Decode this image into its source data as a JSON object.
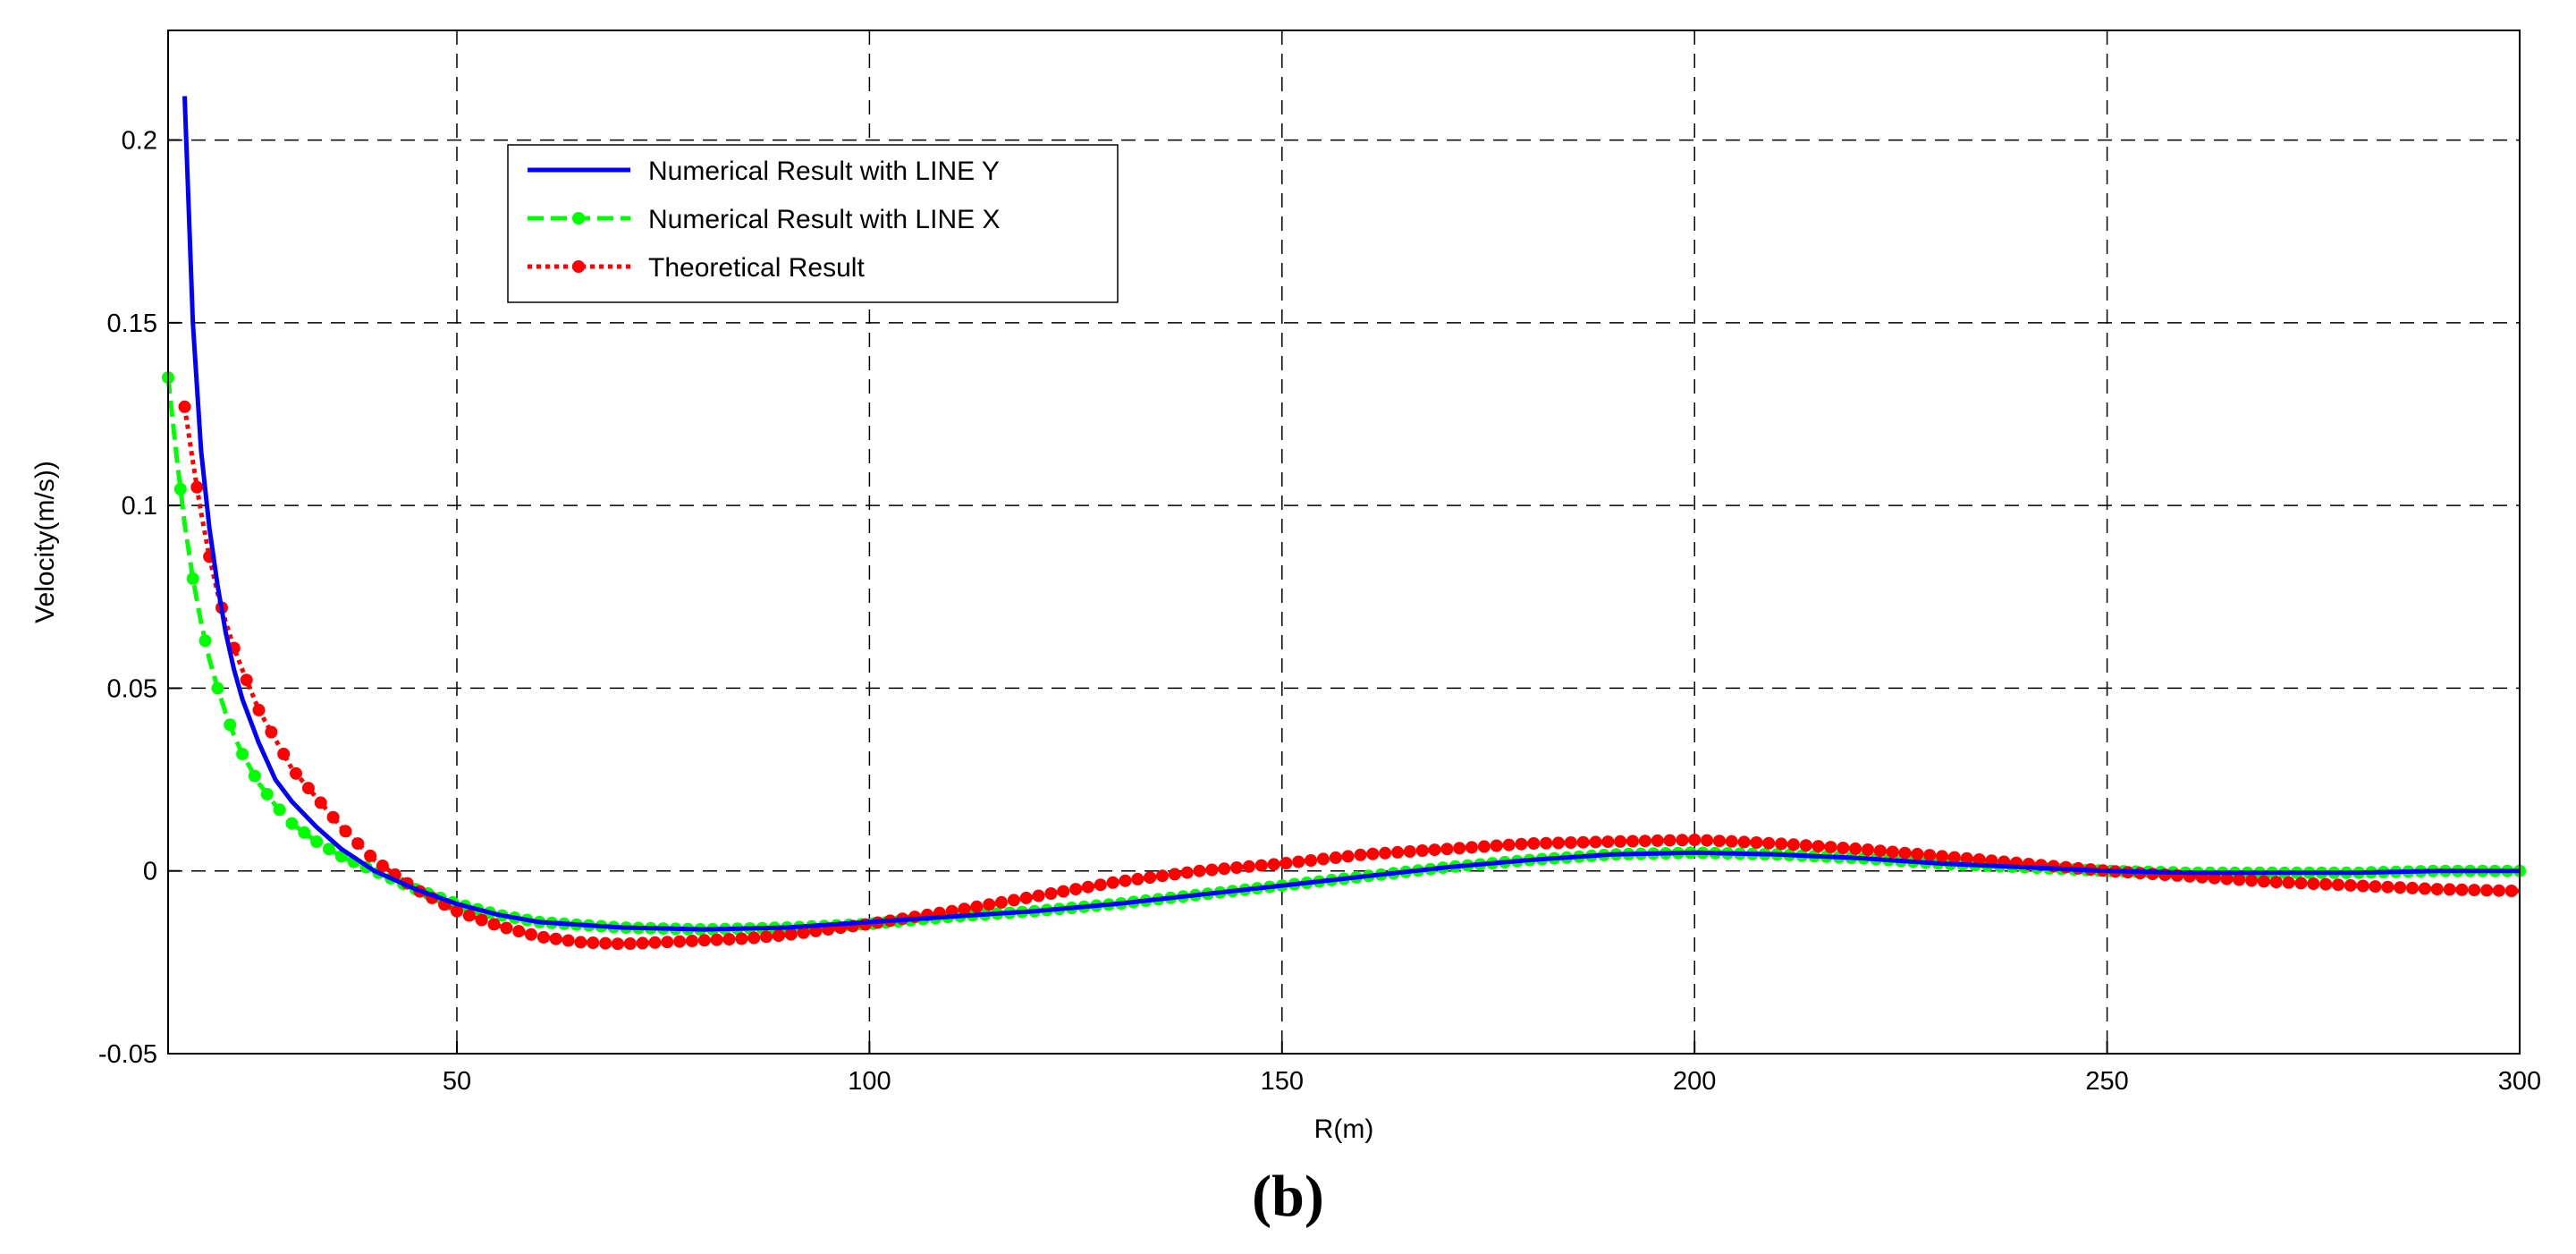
{
  "panel_label": "(b)",
  "colors": {
    "line_y": "#0000ff",
    "line_x": "#00ff00",
    "theoretical": "#ff0000",
    "grid": "#000000",
    "axes": "#000000"
  },
  "chart_data": {
    "type": "line",
    "title": "",
    "xlabel": "R(m)",
    "ylabel": "Velocity(m/s))",
    "xlim": [
      15,
      300
    ],
    "ylim": [
      -0.05,
      0.23
    ],
    "xticks": [
      50,
      100,
      150,
      200,
      250,
      300
    ],
    "xtick_labels": [
      "50",
      "100",
      "150",
      "200",
      "250",
      "300"
    ],
    "yticks": [
      -0.05,
      0,
      0.05,
      0.1,
      0.15,
      0.2
    ],
    "ytick_labels": [
      "-0.05",
      "0",
      "0.05",
      "0.1",
      "0.15",
      "0.2"
    ],
    "grid": true,
    "grid_style": "dashed",
    "legend_position": "upper-left",
    "series": [
      {
        "name": "Numerical Result with LINE Y",
        "color": "#0000ff",
        "style": "solid",
        "marker": "none",
        "x": [
          17,
          18,
          19,
          20,
          21,
          22,
          23,
          24,
          26,
          28,
          30,
          33,
          36,
          40,
          45,
          50,
          55,
          60,
          70,
          80,
          90,
          100,
          110,
          120,
          130,
          140,
          150,
          160,
          170,
          180,
          190,
          200,
          210,
          220,
          230,
          240,
          250,
          260,
          270,
          280,
          290,
          300
        ],
        "y": [
          0.212,
          0.15,
          0.115,
          0.094,
          0.078,
          0.065,
          0.055,
          0.047,
          0.035,
          0.025,
          0.019,
          0.012,
          0.006,
          0.0,
          -0.005,
          -0.009,
          -0.012,
          -0.014,
          -0.0155,
          -0.016,
          -0.0155,
          -0.014,
          -0.0125,
          -0.011,
          -0.009,
          -0.0065,
          -0.004,
          -0.0015,
          0.001,
          0.003,
          0.0045,
          0.005,
          0.0045,
          0.0035,
          0.002,
          0.001,
          0.0,
          -0.0005,
          -0.0005,
          -0.0005,
          0.0,
          0.0
        ]
      },
      {
        "name": "Numerical Result with LINE X",
        "color": "#00ff00",
        "style": "dashed",
        "marker": "circle",
        "x": [
          15,
          16,
          17,
          18,
          19,
          20,
          21,
          22,
          23,
          24,
          26,
          28,
          30,
          33,
          36,
          40,
          45,
          50,
          55,
          60,
          70,
          80,
          90,
          100,
          110,
          120,
          130,
          140,
          150,
          160,
          170,
          180,
          190,
          200,
          210,
          220,
          230,
          240,
          250,
          260,
          270,
          280,
          290,
          300
        ],
        "y": [
          0.135,
          0.114,
          0.095,
          0.08,
          0.068,
          0.058,
          0.05,
          0.043,
          0.037,
          0.032,
          0.024,
          0.018,
          0.013,
          0.008,
          0.004,
          0.0,
          -0.005,
          -0.009,
          -0.012,
          -0.014,
          -0.0155,
          -0.016,
          -0.0155,
          -0.0145,
          -0.0125,
          -0.011,
          -0.009,
          -0.0065,
          -0.004,
          -0.0015,
          0.001,
          0.003,
          0.0045,
          0.005,
          0.0045,
          0.0035,
          0.002,
          0.001,
          0.0,
          -0.0005,
          -0.0005,
          -0.0005,
          0.0,
          0.0
        ]
      },
      {
        "name": "Theoretical Result",
        "color": "#ff0000",
        "style": "dotted",
        "marker": "circle",
        "x": [
          17,
          18,
          19,
          20,
          21,
          22,
          23,
          24,
          26,
          28,
          30,
          33,
          36,
          40,
          45,
          50,
          55,
          60,
          65,
          70,
          75,
          80,
          85,
          90,
          95,
          100,
          110,
          120,
          130,
          140,
          150,
          160,
          170,
          180,
          190,
          200,
          210,
          220,
          230,
          240,
          250,
          260,
          270,
          280,
          290,
          300
        ],
        "y": [
          0.127,
          0.112,
          0.098,
          0.086,
          0.076,
          0.068,
          0.061,
          0.055,
          0.044,
          0.036,
          0.028,
          0.02,
          0.012,
          0.003,
          -0.005,
          -0.011,
          -0.015,
          -0.018,
          -0.0195,
          -0.02,
          -0.0195,
          -0.019,
          -0.0185,
          -0.0175,
          -0.016,
          -0.0145,
          -0.011,
          -0.007,
          -0.003,
          0.0,
          0.002,
          0.0045,
          0.006,
          0.0075,
          0.008,
          0.0085,
          0.0075,
          0.006,
          0.004,
          0.002,
          0.0,
          -0.0015,
          -0.003,
          -0.004,
          -0.005,
          -0.0055
        ]
      }
    ]
  }
}
